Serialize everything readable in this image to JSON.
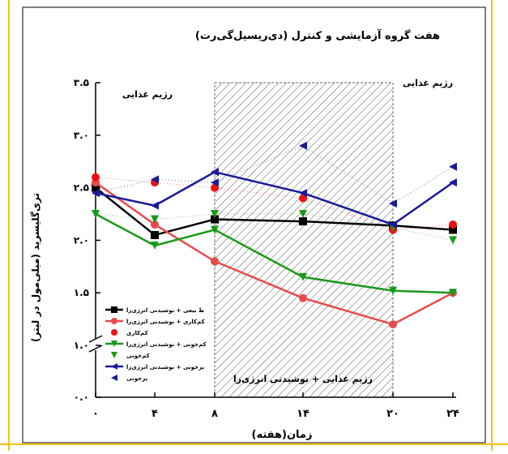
{
  "chart_data": {
    "type": "line",
    "title": "هفت گروه آزمایشی و کنترل (دی‌ریسیل‌گی‌رت)",
    "xlabel": "زمان(هفته)",
    "ylabel": "تری‌گلیسرید (میلی‌مول در لیتر)",
    "x_ticks": [
      "۰",
      "۴",
      "۸",
      "۱۴",
      "۲۰",
      "۲۴"
    ],
    "y_ticks": [
      "۰.۰",
      "۱.۰",
      "۱.۵",
      "۲.۰",
      "۲.۵",
      "۳.۰",
      "۳.۵"
    ],
    "x": [
      0,
      4,
      8,
      14,
      20,
      24
    ],
    "y_axis_break": [
      0,
      1.0
    ],
    "ylim": [
      0,
      3.5
    ],
    "region_labels": {
      "left": "رژیم غذایی",
      "right": "رژیم غذایی",
      "shaded": "رژیم غذایی + نوشیدنی انرژی‌زا"
    },
    "shaded_x_range": [
      8,
      20
    ],
    "series": [
      {
        "name": "ط بیعی + نوشیدنی انرژی‌زا",
        "color": "#000000",
        "marker": "square",
        "style": "line",
        "values": [
          2.5,
          2.05,
          2.2,
          2.18,
          2.14,
          2.1
        ]
      },
      {
        "name": "کم‌کاری + نوشیدنی انرژی‌زا",
        "color": "#e84a4a",
        "marker": "circle",
        "style": "line",
        "values": [
          2.55,
          2.15,
          1.8,
          1.45,
          1.2,
          1.5
        ]
      },
      {
        "name": "کم‌کاری",
        "color": "#ee1111",
        "marker": "circle",
        "style": "dotted",
        "values": [
          2.6,
          2.55,
          2.5,
          2.4,
          2.1,
          2.15
        ]
      },
      {
        "name": "کم‌خونی + نوشیدنی انرژی‌زا",
        "color": "#1a9a1a",
        "marker": "triangle-down",
        "style": "line",
        "values": [
          2.25,
          1.95,
          2.1,
          1.65,
          1.52,
          1.5
        ]
      },
      {
        "name": "کم‌خونی",
        "color": "#1a9a1a",
        "marker": "triangle-down",
        "style": "dotted",
        "values": [
          2.25,
          2.2,
          2.25,
          2.25,
          2.12,
          2.0
        ]
      },
      {
        "name": "پرخونی + نوشیدنی انرژی‌زا",
        "color": "#1a1a99",
        "marker": "triangle-left",
        "style": "line",
        "values": [
          2.45,
          2.33,
          2.65,
          2.45,
          2.15,
          2.55
        ]
      },
      {
        "name": "پرخونی",
        "color": "#1a1a99",
        "marker": "triangle-left",
        "style": "dotted",
        "values": [
          2.45,
          2.58,
          2.55,
          2.9,
          2.35,
          2.7
        ]
      }
    ],
    "legend": "inside-left"
  },
  "colors": {
    "frame": "#f4c20d",
    "axis": "#000000",
    "hatch": "#555555"
  }
}
